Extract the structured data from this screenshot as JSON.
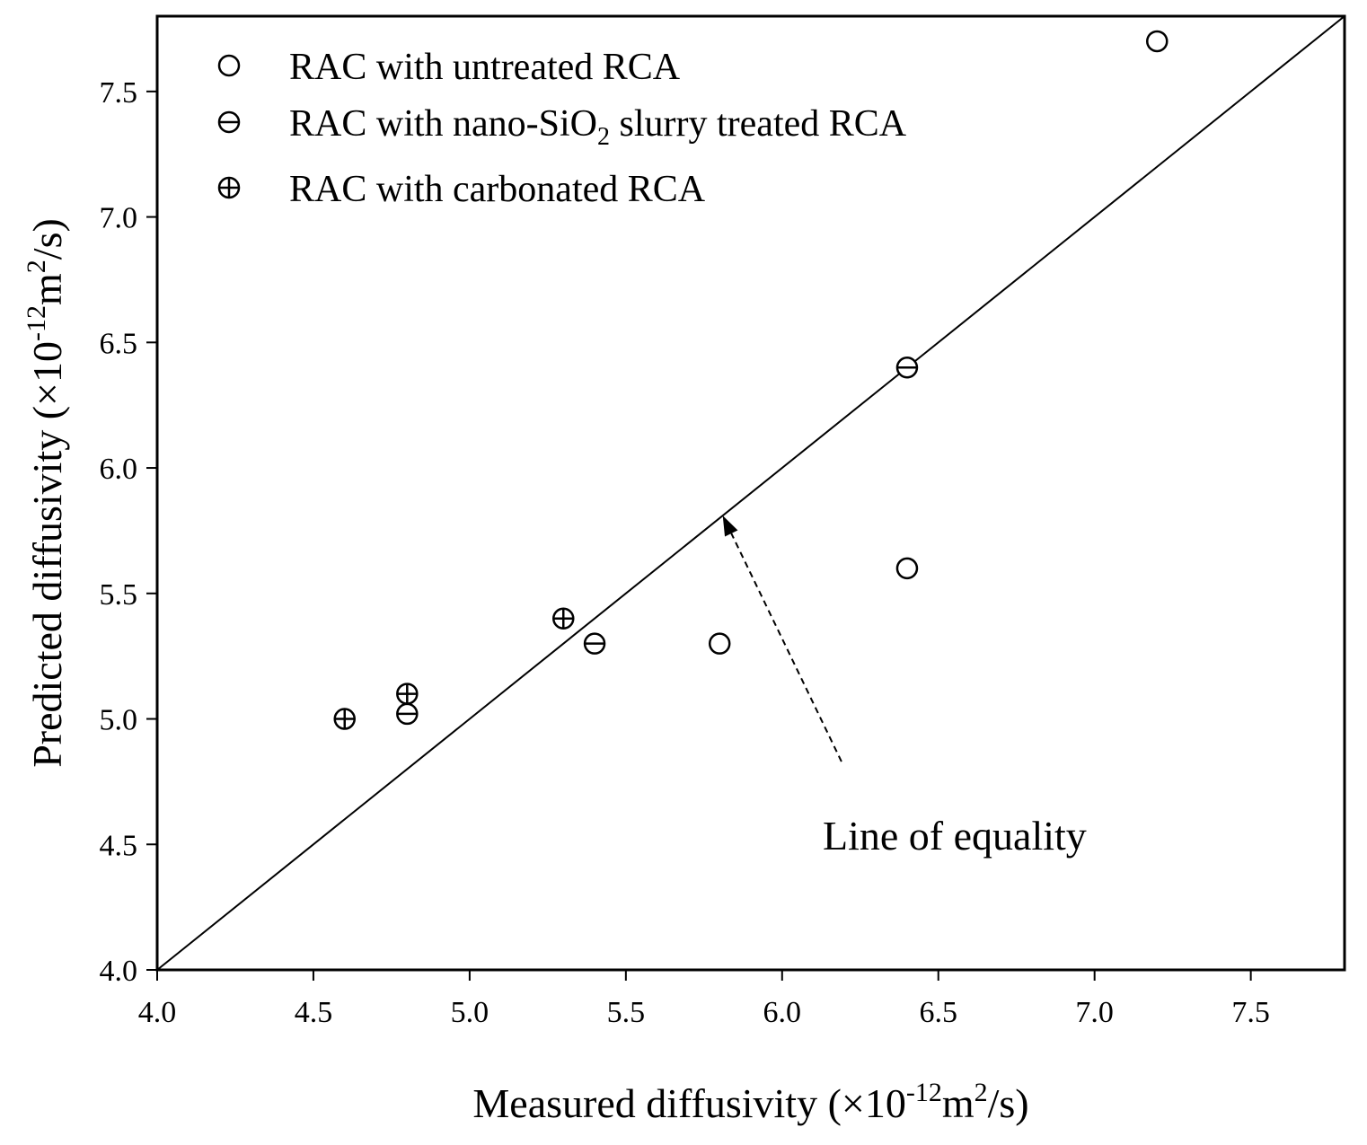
{
  "chart_data": {
    "type": "scatter",
    "title": "",
    "xlabel": {
      "prefix": "Measured diffusivity (×10",
      "exponent": "-12",
      "unit": "m",
      "unit_exp": "2",
      "suffix": "/s)"
    },
    "ylabel": {
      "prefix": "Predicted diffusivity (×10",
      "exponent": "-12",
      "unit": "m",
      "unit_exp": "2",
      "suffix": "/s)"
    },
    "xlim": [
      4.0,
      7.8
    ],
    "ylim": [
      4.0,
      7.8
    ],
    "xticks": [
      "4.0",
      "4.5",
      "5.0",
      "5.5",
      "6.0",
      "6.5",
      "7.0",
      "7.5"
    ],
    "yticks": [
      "4.0",
      "4.5",
      "5.0",
      "5.5",
      "6.0",
      "6.5",
      "7.0",
      "7.5"
    ],
    "grid": false,
    "legend_position": "top-left",
    "series": [
      {
        "name": "RAC with untreated RCA",
        "label": {
          "text": "RAC with untreated RCA"
        },
        "marker": "circle",
        "points": [
          {
            "x": 5.8,
            "y": 5.3
          },
          {
            "x": 6.4,
            "y": 5.6
          },
          {
            "x": 7.2,
            "y": 7.7
          }
        ]
      },
      {
        "name": "RAC with nano-SiO2 slurry treated RCA",
        "label": {
          "before": "RAC with nano-SiO",
          "sub": "2",
          "after": " slurry treated RCA"
        },
        "marker": "circle-minus",
        "points": [
          {
            "x": 4.8,
            "y": 5.02
          },
          {
            "x": 5.4,
            "y": 5.3
          },
          {
            "x": 6.4,
            "y": 6.4
          }
        ]
      },
      {
        "name": "RAC with carbonated RCA",
        "label": {
          "text": "RAC with carbonated RCA"
        },
        "marker": "circle-plus",
        "points": [
          {
            "x": 4.6,
            "y": 5.0
          },
          {
            "x": 4.8,
            "y": 5.1
          },
          {
            "x": 5.3,
            "y": 5.4
          }
        ]
      }
    ],
    "reference_line": {
      "name": "Line of equality",
      "from": [
        4.0,
        4.0
      ],
      "to": [
        7.8,
        7.8
      ]
    },
    "annotation": {
      "text": "Line of equality",
      "text_anchor": {
        "x": 6.13,
        "y": 4.48
      },
      "arrow_from": {
        "x": 6.19,
        "y": 4.83
      },
      "arrow_to": {
        "x": 5.81,
        "y": 5.81
      }
    }
  }
}
